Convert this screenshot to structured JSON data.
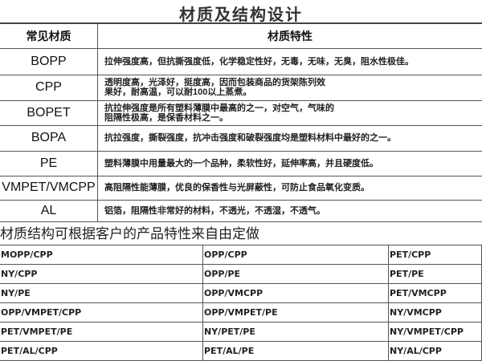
{
  "title": "材质及结构设计",
  "header": {
    "material": "常见材质",
    "property": "材质特性"
  },
  "materials": [
    {
      "name": "BOPP",
      "desc": "拉伸强度高，但抗撕强度低，化学稳定性好，无毒，无味，无臭，阻水性极佳。"
    },
    {
      "name": "CPP",
      "desc": "透明度高，光泽好，挺度高，因而包装商品的货架陈列效果好，耐高温，可以耐100以上蒸煮。"
    },
    {
      "name": "BOPET",
      "desc": "抗拉伸强度是所有塑料薄膜中最高的之一，对空气，气味的阻隔性极高，是保香材料之一。"
    },
    {
      "name": "BOPA",
      "desc": "抗拉强度，撕裂强度，抗冲击强度和破裂强度均是塑料材料中最好的之一。"
    },
    {
      "name": "PE",
      "desc": "塑料薄膜中用量最大的一个品种，柔软性好，延伸率高，并且硬度低。"
    },
    {
      "name": "VMPET/VMCPP",
      "desc": "高阻隔性能薄膜，优良的保香性与光屏蔽性，可防止食品氧化变质。"
    },
    {
      "name": "AL",
      "desc": "铝箔，阻隔性非常好的材料，不透光，不透湿，不透气。"
    }
  ],
  "subtitle": "材质结构可根据客户的产品特性来自由定做",
  "structures": [
    [
      "MOPP/CPP",
      "OPP/CPP",
      "PET/CPP"
    ],
    [
      "NY/CPP",
      "OPP/PE",
      "PET/PE"
    ],
    [
      "NY/PE",
      "OPP/VMCPP",
      "PET/VMCPP"
    ],
    [
      "OPP/VMPET/CPP",
      "OPP/VMPET/PE",
      "NY/VMCPP"
    ],
    [
      "PET/VMPET/PE",
      "NY/PET/PE",
      "NY/VMPET/CPP"
    ],
    [
      "PET/AL/CPP",
      "PET/AL/PE",
      "NY/AL/CPP"
    ]
  ]
}
